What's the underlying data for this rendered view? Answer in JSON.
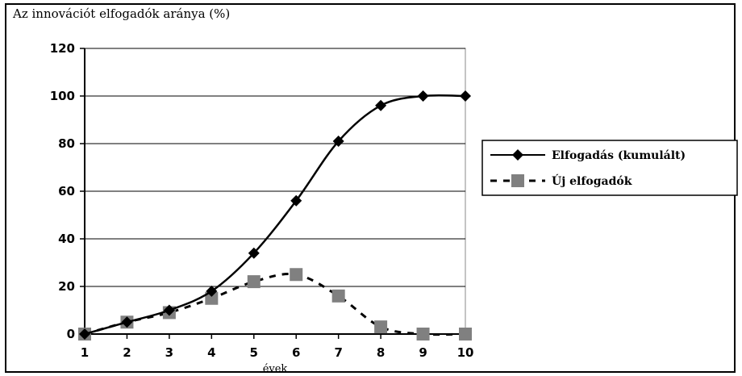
{
  "chart_data": {
    "type": "line",
    "title": "Az innovációt elfogadók aránya (%)",
    "xlabel": "évek",
    "ylabel": "",
    "x": [
      1,
      2,
      3,
      4,
      5,
      6,
      7,
      8,
      9,
      10
    ],
    "ylim": [
      0,
      120
    ],
    "yticks": [
      0,
      20,
      40,
      60,
      80,
      100,
      120
    ],
    "grid": true,
    "legend_position": "right",
    "series": [
      {
        "name": "Elfogadás (kumulált)",
        "style": "solid",
        "marker": "diamond",
        "color": "#000000",
        "values": [
          0,
          5,
          10,
          18,
          34,
          56,
          81,
          96,
          100,
          100
        ]
      },
      {
        "name": "Új elfogadók",
        "style": "dashed",
        "marker": "square",
        "color": "#808080",
        "values": [
          0,
          5,
          9,
          15,
          22,
          25,
          16,
          3,
          0,
          0
        ]
      }
    ]
  }
}
